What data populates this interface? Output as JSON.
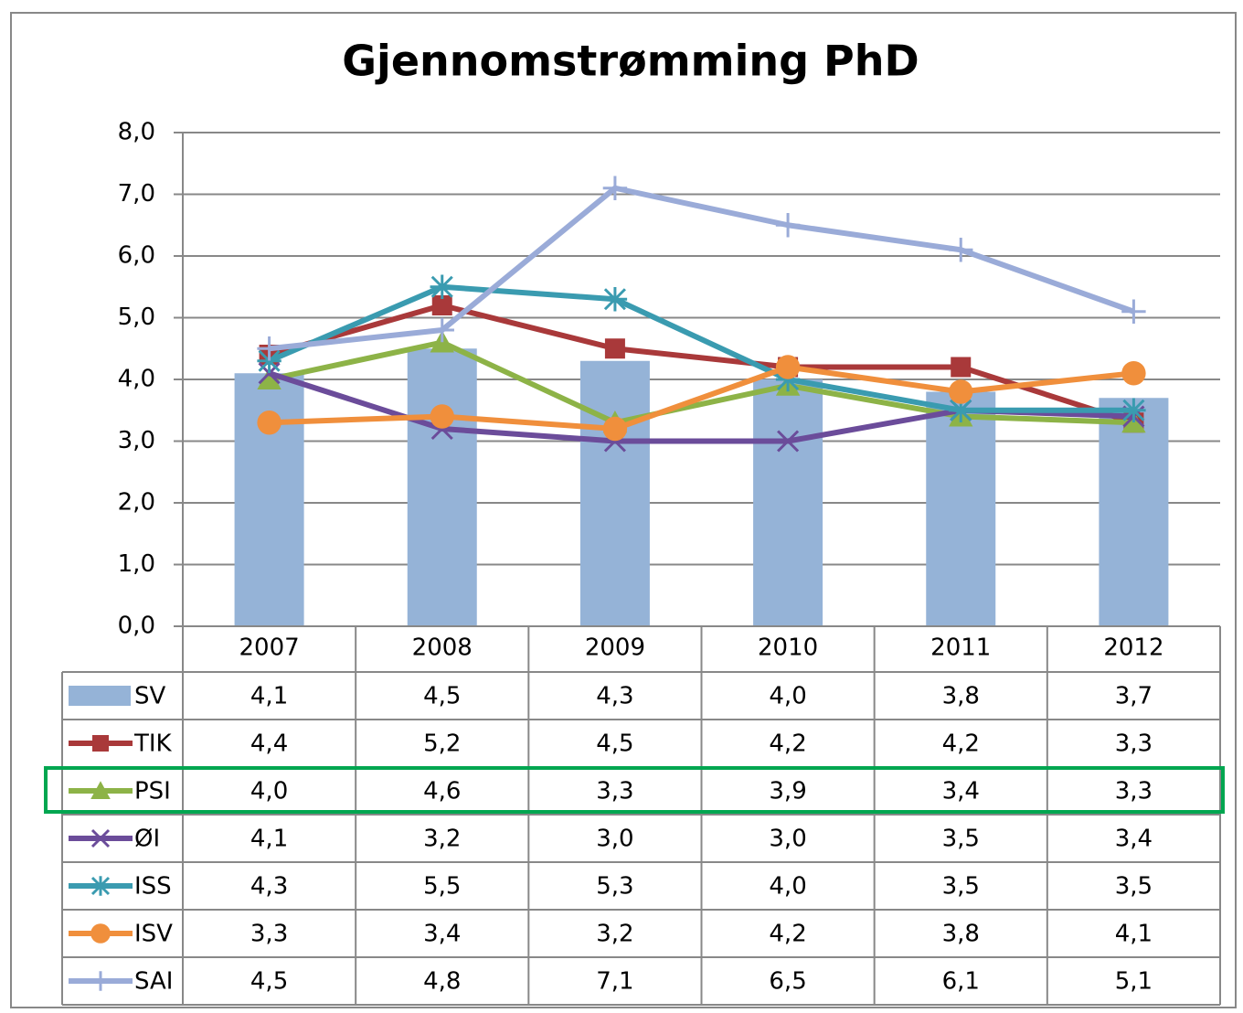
{
  "chart_data": {
    "type": "bar",
    "title": "Gjennomstrømming PhD",
    "categories": [
      "2007",
      "2008",
      "2009",
      "2010",
      "2011",
      "2012"
    ],
    "ylim": [
      0,
      8
    ],
    "yticks": [
      {
        "value": 0,
        "label": "0,0"
      },
      {
        "value": 1,
        "label": "1,0"
      },
      {
        "value": 2,
        "label": "2,0"
      },
      {
        "value": 3,
        "label": "3,0"
      },
      {
        "value": 4,
        "label": "4,0"
      },
      {
        "value": 5,
        "label": "5,0"
      },
      {
        "value": 6,
        "label": "6,0"
      },
      {
        "value": 7,
        "label": "7,0"
      },
      {
        "value": 8,
        "label": "8,0"
      }
    ],
    "grid": true,
    "series": [
      {
        "name": "SV",
        "type": "bar",
        "color": "#95b3d7",
        "values": [
          4.1,
          4.5,
          4.3,
          4.0,
          3.8,
          3.7
        ],
        "value_labels": [
          "4,1",
          "4,5",
          "4,3",
          "4,0",
          "3,8",
          "3,7"
        ]
      },
      {
        "name": "TIK",
        "type": "line",
        "marker": "square",
        "color": "#a9393a",
        "values": [
          4.4,
          5.2,
          4.5,
          4.2,
          4.2,
          3.3
        ],
        "value_labels": [
          "4,4",
          "5,2",
          "4,5",
          "4,2",
          "4,2",
          "3,3"
        ]
      },
      {
        "name": "PSI",
        "type": "line",
        "marker": "triangle",
        "color": "#8db347",
        "values": [
          4.0,
          4.6,
          3.3,
          3.9,
          3.4,
          3.3
        ],
        "value_labels": [
          "4,0",
          "4,6",
          "3,3",
          "3,9",
          "3,4",
          "3,3"
        ]
      },
      {
        "name": "ØI",
        "type": "line",
        "marker": "x",
        "color": "#6b4c9a",
        "values": [
          4.1,
          3.2,
          3.0,
          3.0,
          3.5,
          3.4
        ],
        "value_labels": [
          "4,1",
          "3,2",
          "3,0",
          "3,0",
          "3,5",
          "3,4"
        ]
      },
      {
        "name": "ISS",
        "type": "line",
        "marker": "star",
        "color": "#3a9bb0",
        "values": [
          4.3,
          5.5,
          5.3,
          4.0,
          3.5,
          3.5
        ],
        "value_labels": [
          "4,3",
          "5,5",
          "5,3",
          "4,0",
          "3,5",
          "3,5"
        ]
      },
      {
        "name": "ISV",
        "type": "line",
        "marker": "circle",
        "color": "#f08f3c",
        "values": [
          3.3,
          3.4,
          3.2,
          4.2,
          3.8,
          4.1
        ],
        "value_labels": [
          "3,3",
          "3,4",
          "3,2",
          "4,2",
          "3,8",
          "4,1"
        ]
      },
      {
        "name": "SAI",
        "type": "line",
        "marker": "plus",
        "color": "#9aabd8",
        "values": [
          4.5,
          4.8,
          7.1,
          6.5,
          6.1,
          5.1
        ],
        "value_labels": [
          "4,5",
          "4,8",
          "7,1",
          "6,5",
          "6,1",
          "5,1"
        ]
      }
    ]
  }
}
